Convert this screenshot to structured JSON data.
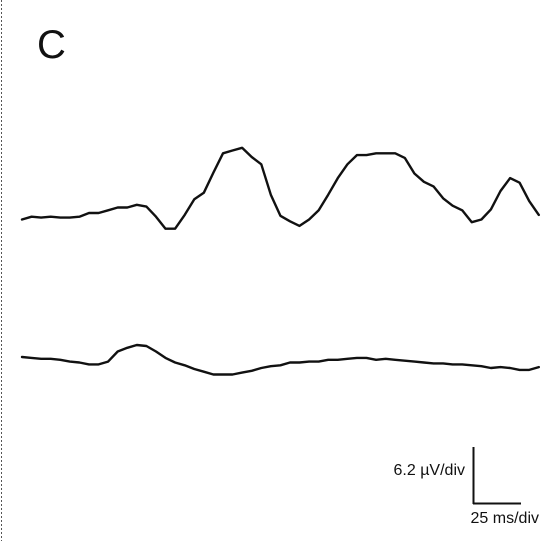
{
  "panel_label": "C",
  "chart_data": {
    "type": "line",
    "title": "",
    "xlabel": "",
    "ylabel": "",
    "grid": false,
    "legend": "none",
    "x": [
      0,
      10,
      20,
      30,
      40,
      50,
      60,
      70,
      80,
      90,
      100,
      110,
      120,
      130,
      140,
      150,
      160,
      170,
      180,
      190,
      200,
      210,
      220,
      230,
      240,
      250,
      260,
      270,
      280,
      290,
      300,
      310,
      320,
      330,
      340,
      350,
      360,
      370,
      380,
      390,
      400,
      410,
      420,
      430,
      440,
      450,
      460,
      470,
      480,
      490,
      500,
      510,
      520,
      530,
      540
    ],
    "series": [
      {
        "values": [
          0.6,
          0.9,
          0.8,
          0.9,
          0.8,
          0.8,
          0.9,
          1.3,
          1.3,
          1.6,
          1.9,
          1.9,
          2.2,
          2.0,
          0.9,
          -0.4,
          -0.4,
          1.1,
          2.8,
          3.5,
          5.7,
          7.8,
          8.1,
          8.4,
          7.4,
          6.6,
          3.3,
          1.0,
          0.4,
          -0.1,
          0.6,
          1.6,
          3.3,
          5.1,
          6.6,
          7.6,
          7.6,
          7.8,
          7.8,
          7.8,
          7.3,
          5.6,
          4.7,
          4.2,
          2.9,
          2.1,
          1.6,
          0.3,
          0.6,
          1.7,
          3.7,
          5.1,
          4.6,
          2.6,
          1.1
        ],
        "color": "#111111"
      },
      {
        "values": [
          0.0,
          -0.1,
          -0.2,
          -0.2,
          -0.3,
          -0.5,
          -0.6,
          -0.8,
          -0.8,
          -0.5,
          0.6,
          1.0,
          1.3,
          1.2,
          0.6,
          -0.1,
          -0.6,
          -0.9,
          -1.3,
          -1.6,
          -1.9,
          -1.9,
          -1.9,
          -1.7,
          -1.5,
          -1.2,
          -1.0,
          -0.9,
          -0.6,
          -0.6,
          -0.5,
          -0.5,
          -0.3,
          -0.3,
          -0.2,
          -0.1,
          -0.1,
          -0.3,
          -0.2,
          -0.3,
          -0.4,
          -0.5,
          -0.6,
          -0.7,
          -0.7,
          -0.8,
          -0.8,
          -0.9,
          -1.0,
          -1.2,
          -1.1,
          -1.2,
          -1.4,
          -1.4,
          -1.1
        ],
        "color": "#111111"
      }
    ],
    "scale_bar": {
      "amplitude_label": "6.2 µV/div",
      "time_label": "25 ms/div",
      "amplitude_value": 6.2,
      "amplitude_unit": "µV",
      "time_value": 25,
      "time_unit": "ms"
    }
  }
}
